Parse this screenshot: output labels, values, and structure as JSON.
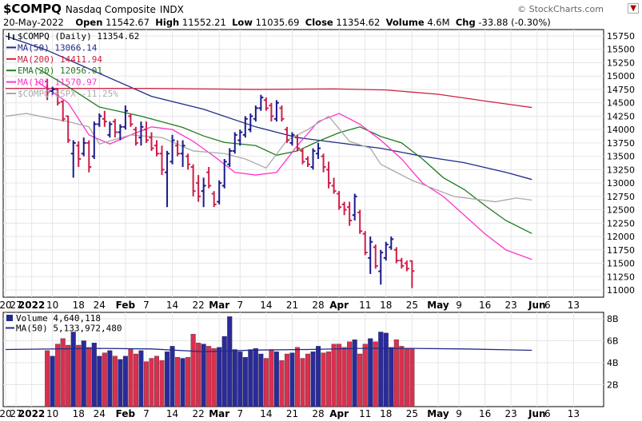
{
  "header": {
    "symbol": "$COMPQ",
    "name": "Nasdaq Composite",
    "exchange": "INDX",
    "date": "20-May-2022",
    "open_label": "Open",
    "open": "11542.67",
    "high_label": "High",
    "high": "11552.21",
    "low_label": "Low",
    "low": "11035.69",
    "close_label": "Close",
    "close": "11354.62",
    "volume_label": "Volume",
    "volume": "4.6M",
    "chg_label": "Chg",
    "chg": "-33.88 (-0.30%)",
    "brand": "© StockCharts.com",
    "brand_menu": "▼"
  },
  "overlay_legend": [
    {
      "text": "$COMPQ (Daily) 11354.62",
      "color": "#000000",
      "marker": "candle"
    },
    {
      "text": "MA(50) 13066.14",
      "color": "#1f2a8a",
      "marker": "line"
    },
    {
      "text": "MA(200) 14411.94",
      "color": "#cc2244",
      "marker": "line"
    },
    {
      "text": "EMA(20) 12056.01",
      "color": "#1f7a1f",
      "marker": "line"
    },
    {
      "text": "MA(10) 11570.97",
      "color": "#ff33cc",
      "marker": "line"
    },
    {
      "text": "$COMPQ:$SPX -11.25%",
      "color": "#aaaaaa",
      "marker": "line"
    }
  ],
  "volume_legend": [
    {
      "text": "Volume 4,640,118",
      "color": "#1f2a8a",
      "marker": "box"
    },
    {
      "text": "MA(50) 5,133,972,480",
      "color": "#1f2a8a",
      "marker": "line"
    }
  ],
  "colors": {
    "up": "#1a1a8c",
    "down": "#cc1f4a",
    "vol_up": "#2a2a9a",
    "vol_down": "#d9304f",
    "grid": "#e6e6e6",
    "axis": "#000000"
  },
  "chart_data": {
    "type": "candlestick",
    "price_ylim": [
      11000,
      15750
    ],
    "price_yticks": [
      11000,
      11250,
      11500,
      11750,
      12000,
      12250,
      12500,
      12750,
      13000,
      13250,
      13500,
      13750,
      14000,
      14250,
      14500,
      14750,
      15000,
      15250,
      15500,
      15750
    ],
    "volume_ylim": [
      0,
      8
    ],
    "volume_yticks": [
      {
        "v": 2,
        "label": "2B"
      },
      {
        "v": 4,
        "label": "4B"
      },
      {
        "v": 6,
        "label": "6B"
      },
      {
        "v": 8,
        "label": "8B"
      }
    ],
    "x_range": [
      -8,
      106
    ],
    "x_ticks": [
      {
        "i": -8,
        "label": "20"
      },
      {
        "i": -6,
        "label": "27"
      },
      {
        "i": -3,
        "label": "2022",
        "bold": true
      },
      {
        "i": 1,
        "label": "10"
      },
      {
        "i": 6,
        "label": "18"
      },
      {
        "i": 10,
        "label": "24"
      },
      {
        "i": 15,
        "label": "Feb",
        "bold": true
      },
      {
        "i": 19,
        "label": "7"
      },
      {
        "i": 24,
        "label": "14"
      },
      {
        "i": 29,
        "label": "22"
      },
      {
        "i": 33,
        "label": "Mar",
        "bold": true
      },
      {
        "i": 37,
        "label": "7"
      },
      {
        "i": 42,
        "label": "14"
      },
      {
        "i": 47,
        "label": "21"
      },
      {
        "i": 52,
        "label": "28"
      },
      {
        "i": 56,
        "label": "Apr",
        "bold": true
      },
      {
        "i": 61,
        "label": "11"
      },
      {
        "i": 65,
        "label": "18"
      },
      {
        "i": 70,
        "label": "25"
      },
      {
        "i": 75,
        "label": "May",
        "bold": true
      },
      {
        "i": 79,
        "label": "9"
      },
      {
        "i": 84,
        "label": "16"
      },
      {
        "i": 89,
        "label": "23"
      },
      {
        "i": 94,
        "label": "Jun",
        "bold": true
      },
      {
        "i": 96,
        "label": "6"
      },
      {
        "i": 101,
        "label": "13"
      }
    ],
    "candles": [
      [
        14900,
        14950,
        14550,
        14700
      ],
      [
        14720,
        14800,
        14650,
        14750
      ],
      [
        14750,
        14760,
        14450,
        14500
      ],
      [
        14520,
        14550,
        14150,
        14200
      ],
      [
        14250,
        14260,
        13750,
        13800
      ],
      [
        13550,
        13800,
        13100,
        13750
      ],
      [
        13700,
        13780,
        13300,
        13450
      ],
      [
        13550,
        13850,
        13500,
        13750
      ],
      [
        13750,
        13800,
        13200,
        13300
      ],
      [
        13500,
        14150,
        13450,
        14100
      ],
      [
        14100,
        14300,
        14050,
        14250
      ],
      [
        14200,
        14350,
        14050,
        14150
      ],
      [
        13900,
        14150,
        13850,
        14100
      ],
      [
        14150,
        14200,
        13850,
        13950
      ],
      [
        13950,
        14100,
        13800,
        14050
      ],
      [
        14050,
        14450,
        14000,
        14350
      ],
      [
        14250,
        14300,
        14050,
        14100
      ],
      [
        14000,
        14050,
        13700,
        13750
      ],
      [
        13850,
        14150,
        13700,
        14050
      ],
      [
        14000,
        14150,
        13750,
        13800
      ],
      [
        13850,
        13950,
        13600,
        13650
      ],
      [
        13700,
        13800,
        13500,
        13550
      ],
      [
        13550,
        13700,
        13150,
        13250
      ],
      [
        13200,
        13600,
        12550,
        13550
      ],
      [
        13400,
        13900,
        13350,
        13800
      ],
      [
        13700,
        13800,
        13500,
        13550
      ],
      [
        13550,
        13800,
        13300,
        13700
      ],
      [
        13500,
        13550,
        13250,
        13350
      ],
      [
        13300,
        13350,
        12750,
        12850
      ],
      [
        13000,
        13150,
        12650,
        12750
      ],
      [
        12850,
        13100,
        12550,
        12950
      ],
      [
        13200,
        13300,
        12900,
        12950
      ],
      [
        12800,
        12850,
        12550,
        12600
      ],
      [
        12650,
        13050,
        12600,
        13000
      ],
      [
        12950,
        13450,
        12900,
        13400
      ],
      [
        13350,
        13650,
        13300,
        13600
      ],
      [
        13600,
        13950,
        13550,
        13900
      ],
      [
        13800,
        14000,
        13700,
        13950
      ],
      [
        13900,
        14250,
        13850,
        14200
      ],
      [
        14000,
        14300,
        13950,
        14250
      ],
      [
        14200,
        14450,
        14150,
        14400
      ],
      [
        14400,
        14650,
        14350,
        14600
      ],
      [
        14550,
        14600,
        14350,
        14400
      ],
      [
        14450,
        14500,
        14150,
        14250
      ],
      [
        14200,
        14550,
        14150,
        14500
      ],
      [
        14400,
        14450,
        14150,
        14200
      ],
      [
        14000,
        14050,
        13750,
        13800
      ],
      [
        13750,
        13950,
        13700,
        13900
      ],
      [
        13850,
        13900,
        13600,
        13650
      ],
      [
        13600,
        13650,
        13350,
        13400
      ],
      [
        13450,
        13500,
        13300,
        13350
      ],
      [
        13300,
        13650,
        13250,
        13600
      ],
      [
        13550,
        13750,
        13450,
        13650
      ],
      [
        13500,
        13550,
        13200,
        13300
      ],
      [
        13250,
        13400,
        12900,
        13000
      ],
      [
        12950,
        13100,
        12800,
        12850
      ],
      [
        12800,
        12850,
        12500,
        12550
      ],
      [
        12600,
        12650,
        12400,
        12500
      ],
      [
        12550,
        12650,
        12200,
        12300
      ],
      [
        12400,
        12800,
        12300,
        12750
      ],
      [
        12450,
        12500,
        12050,
        12100
      ],
      [
        12050,
        12100,
        11650,
        11700
      ],
      [
        11600,
        12000,
        11300,
        11900
      ],
      [
        11800,
        11850,
        11400,
        11450
      ],
      [
        11350,
        11750,
        11100,
        11700
      ],
      [
        11600,
        11900,
        11550,
        11850
      ],
      [
        11800,
        12000,
        11750,
        11950
      ],
      [
        11750,
        11800,
        11500,
        11550
      ],
      [
        11550,
        11600,
        11400,
        11450
      ],
      [
        11500,
        11550,
        11350,
        11400
      ],
      [
        11542.67,
        11552.21,
        11035.69,
        11354.62
      ]
    ],
    "volume_billions": [
      5.1,
      4.6,
      5.7,
      6.2,
      5.6,
      6.8,
      5.6,
      6.0,
      5.4,
      5.8,
      4.6,
      4.9,
      5.1,
      4.6,
      4.3,
      4.6,
      5.3,
      4.8,
      5.1,
      4.1,
      4.4,
      4.6,
      4.2,
      5.0,
      5.5,
      4.5,
      4.4,
      4.5,
      6.6,
      5.8,
      5.7,
      5.5,
      5.3,
      5.4,
      6.4,
      8.2,
      5.2,
      5.0,
      4.5,
      5.2,
      5.3,
      4.8,
      4.4,
      5.2,
      5.0,
      4.2,
      4.8,
      4.9,
      5.4,
      4.4,
      4.8,
      5.0,
      5.5,
      4.9,
      5.0,
      5.7,
      5.7,
      5.4,
      5.9,
      6.1,
      4.8,
      5.7,
      6.2,
      5.9,
      6.8,
      6.7,
      5.4,
      6.1,
      5.5,
      5.3,
      5.3
    ],
    "volume_up": [
      false,
      true,
      false,
      false,
      false,
      true,
      false,
      true,
      false,
      true,
      true,
      false,
      true,
      false,
      true,
      true,
      false,
      false,
      true,
      false,
      false,
      false,
      false,
      true,
      true,
      false,
      true,
      false,
      false,
      false,
      true,
      false,
      false,
      true,
      true,
      true,
      true,
      true,
      true,
      true,
      true,
      true,
      false,
      false,
      true,
      false,
      false,
      true,
      false,
      false,
      false,
      true,
      true,
      false,
      false,
      false,
      false,
      false,
      false,
      true,
      false,
      false,
      true,
      false,
      true,
      true,
      true,
      false,
      false,
      false,
      false
    ],
    "series": [
      {
        "name": "MA(50)",
        "color": "#1f2a8a",
        "values": [
          [
            -8,
            15750
          ],
          [
            0,
            15480
          ],
          [
            10,
            15050
          ],
          [
            20,
            14620
          ],
          [
            30,
            14380
          ],
          [
            40,
            14050
          ],
          [
            48,
            13850
          ],
          [
            56,
            13750
          ],
          [
            64,
            13650
          ],
          [
            72,
            13500
          ],
          [
            80,
            13380
          ],
          [
            88,
            13200
          ],
          [
            93,
            13066
          ]
        ]
      },
      {
        "name": "MA(200)",
        "color": "#cc2244",
        "values": [
          [
            -8,
            14770
          ],
          [
            20,
            14770
          ],
          [
            40,
            14750
          ],
          [
            55,
            14760
          ],
          [
            65,
            14740
          ],
          [
            75,
            14660
          ],
          [
            85,
            14520
          ],
          [
            93,
            14412
          ]
        ]
      },
      {
        "name": "EMA(20)",
        "color": "#1f7a1f",
        "values": [
          [
            -2,
            15150
          ],
          [
            4,
            14800
          ],
          [
            10,
            14420
          ],
          [
            18,
            14250
          ],
          [
            26,
            14040
          ],
          [
            30,
            13880
          ],
          [
            34,
            13760
          ],
          [
            40,
            13700
          ],
          [
            44,
            13520
          ],
          [
            48,
            13600
          ],
          [
            52,
            13780
          ],
          [
            56,
            13940
          ],
          [
            60,
            14050
          ],
          [
            64,
            13870
          ],
          [
            68,
            13750
          ],
          [
            72,
            13450
          ],
          [
            76,
            13100
          ],
          [
            80,
            12880
          ],
          [
            84,
            12580
          ],
          [
            88,
            12300
          ],
          [
            93,
            12056
          ]
        ]
      },
      {
        "name": "MA(10)",
        "color": "#ff33cc",
        "values": [
          [
            -2,
            14900
          ],
          [
            4,
            14500
          ],
          [
            8,
            13900
          ],
          [
            12,
            13730
          ],
          [
            16,
            13900
          ],
          [
            20,
            14050
          ],
          [
            24,
            14000
          ],
          [
            28,
            13780
          ],
          [
            32,
            13500
          ],
          [
            36,
            13200
          ],
          [
            40,
            13150
          ],
          [
            44,
            13200
          ],
          [
            48,
            13700
          ],
          [
            52,
            14150
          ],
          [
            56,
            14300
          ],
          [
            60,
            14100
          ],
          [
            64,
            13800
          ],
          [
            68,
            13450
          ],
          [
            72,
            13000
          ],
          [
            76,
            12750
          ],
          [
            80,
            12400
          ],
          [
            84,
            12050
          ],
          [
            88,
            11750
          ],
          [
            93,
            11571
          ]
        ]
      },
      {
        "name": "$COMPQ:$SPX",
        "color": "#aaaaaa",
        "values": [
          [
            -8,
            14250
          ],
          [
            -4,
            14300
          ],
          [
            0,
            14220
          ],
          [
            4,
            14150
          ],
          [
            8,
            14050
          ],
          [
            10,
            13730
          ],
          [
            16,
            13900
          ],
          [
            22,
            13850
          ],
          [
            28,
            13600
          ],
          [
            34,
            13550
          ],
          [
            38,
            13450
          ],
          [
            42,
            13280
          ],
          [
            46,
            13800
          ],
          [
            50,
            14000
          ],
          [
            54,
            14250
          ],
          [
            58,
            13780
          ],
          [
            62,
            13650
          ],
          [
            64,
            13350
          ],
          [
            66,
            13250
          ],
          [
            70,
            13050
          ],
          [
            74,
            12900
          ],
          [
            78,
            12750
          ],
          [
            82,
            12700
          ],
          [
            86,
            12650
          ],
          [
            90,
            12720
          ],
          [
            93,
            12680
          ]
        ]
      }
    ],
    "volume_ma50": [
      [
        -8,
        5.2
      ],
      [
        10,
        5.3
      ],
      [
        20,
        5.25
      ],
      [
        30,
        5.0
      ],
      [
        40,
        5.15
      ],
      [
        50,
        5.2
      ],
      [
        60,
        5.3
      ],
      [
        70,
        5.3
      ],
      [
        80,
        5.25
      ],
      [
        93,
        5.13
      ]
    ]
  }
}
